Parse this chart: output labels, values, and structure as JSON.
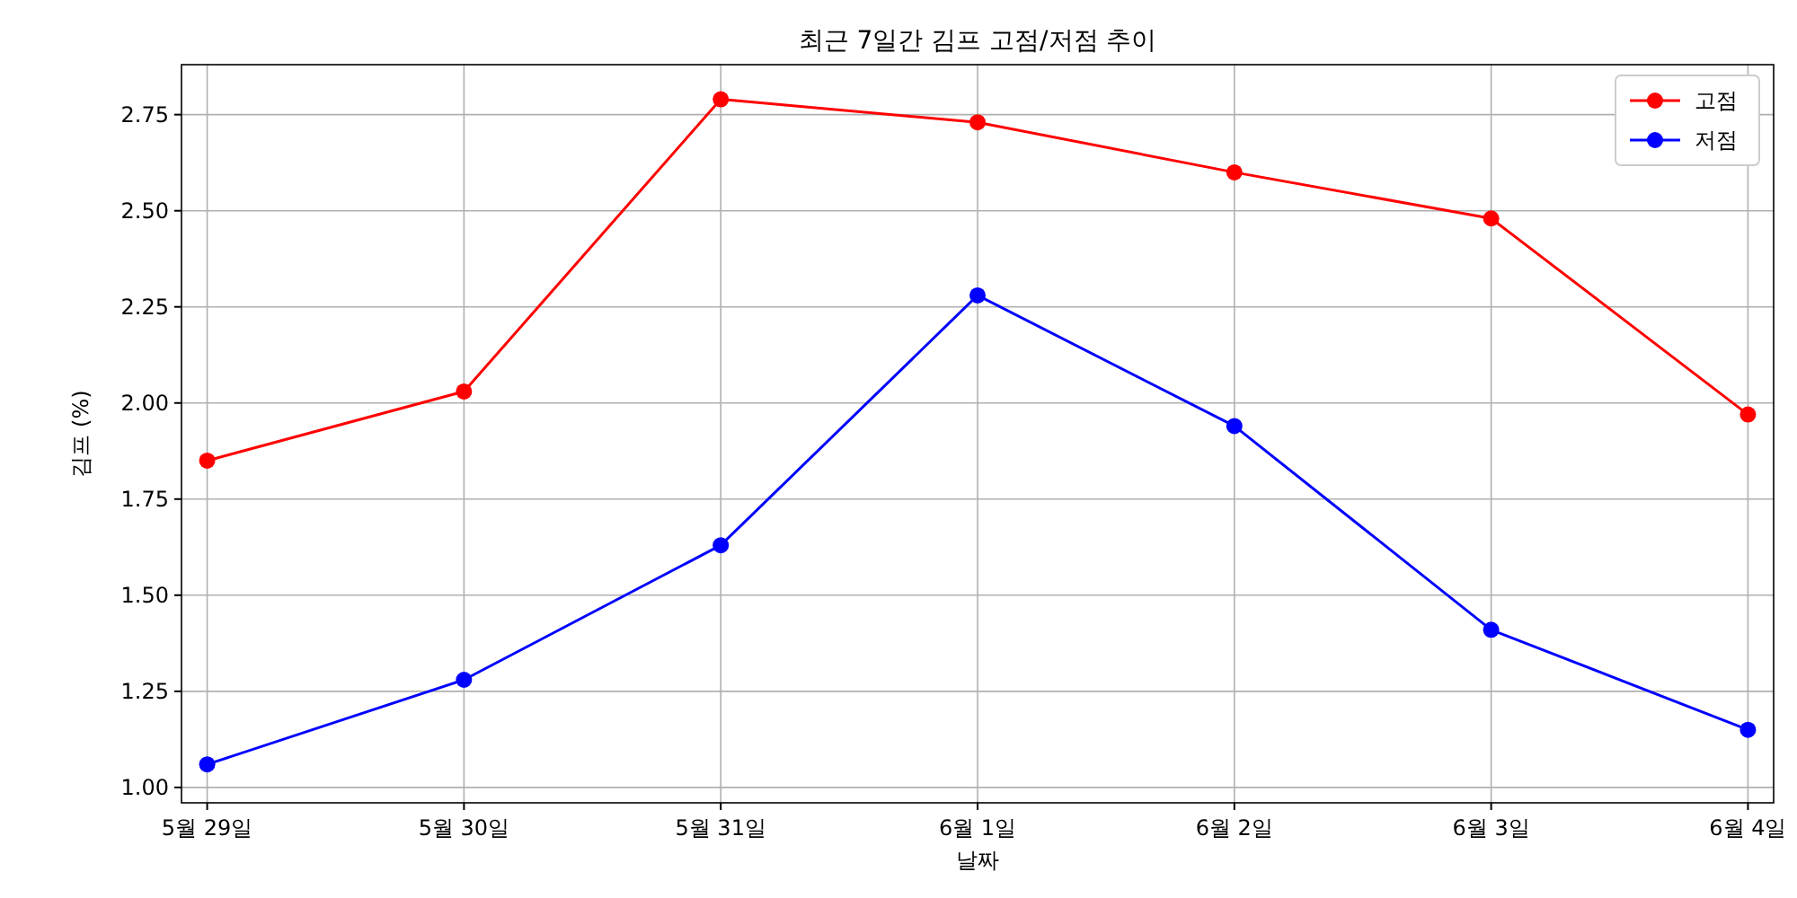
{
  "chart_data": {
    "type": "line",
    "title": "최근 7일간 김프 고점/저점 추이",
    "xlabel": "날짜",
    "ylabel": "김프 (%)",
    "categories": [
      "5월 29일",
      "5월 30일",
      "5월 31일",
      "6월 1일",
      "6월 2일",
      "6월 3일",
      "6월 4일"
    ],
    "series": [
      {
        "name": "고점",
        "color": "#ff0000",
        "values": [
          1.85,
          2.03,
          2.79,
          2.73,
          2.6,
          2.48,
          1.97
        ]
      },
      {
        "name": "저점",
        "color": "#0000ff",
        "values": [
          1.06,
          1.28,
          1.63,
          2.28,
          1.94,
          1.41,
          1.15
        ]
      }
    ],
    "ylim": [
      0.96,
      2.88
    ],
    "yticks": [
      {
        "value": 1,
        "label": "1.00"
      },
      {
        "value": 1.25,
        "label": "1.25"
      },
      {
        "value": 1.5,
        "label": "1.50"
      },
      {
        "value": 1.75,
        "label": "1.75"
      },
      {
        "value": 2,
        "label": "2.00"
      },
      {
        "value": 2.25,
        "label": "2.25"
      },
      {
        "value": 2.5,
        "label": "2.50"
      },
      {
        "value": 2.75,
        "label": "2.75"
      }
    ],
    "grid": true,
    "legend": "top right",
    "marker": "circle",
    "line_style": "solid"
  }
}
